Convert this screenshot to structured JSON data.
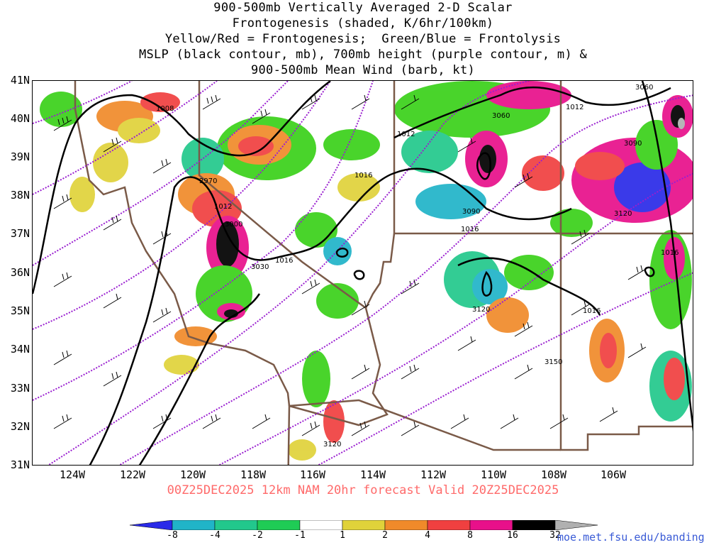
{
  "title": {
    "line1": "900-500mb Vertically Averaged 2-D Scalar",
    "line2": "Frontogenesis (shaded, K/6hr/100km)",
    "line3": "Yellow/Red = Frontogenesis;  Green/Blue = Frontolysis",
    "line4": "MSLP (black contour, mb), 700mb height (purple contour, m) &",
    "line5": "900-500mb Mean Wind (barb, kt)"
  },
  "forecast_line": "00Z25DEC2025 12km NAM 20hr forecast Valid 20Z25DEC2025",
  "credit": "moe.met.fsu.edu/banding",
  "axes": {
    "lat_labels": [
      "41N",
      "40N",
      "39N",
      "38N",
      "37N",
      "36N",
      "35N",
      "34N",
      "33N",
      "32N",
      "31N"
    ],
    "lon_labels": [
      "124W",
      "122W",
      "120W",
      "118W",
      "116W",
      "114W",
      "112W",
      "110W",
      "108W",
      "106W"
    ]
  },
  "colorbar": {
    "labels": [
      "-8",
      "-4",
      "-2",
      "-1",
      "1",
      "2",
      "4",
      "8",
      "16",
      "32"
    ],
    "colors": [
      "#2a2ae8",
      "#20b4c8",
      "#22c88c",
      "#1fcc55",
      "#3ad11a",
      "#ffffff",
      "#e0d23a",
      "#f08a2a",
      "#f04040",
      "#e8108a",
      "#000000",
      "#b0b0b0"
    ]
  },
  "map": {
    "pressure_contour_labels": [
      "1008",
      "1012",
      "1012",
      "1016",
      "1012",
      "1016",
      "1016",
      "1016",
      "1016"
    ],
    "height_contour_labels": [
      "3060",
      "3060",
      "3090",
      "2970",
      "3090",
      "3000",
      "3120",
      "3030",
      "3120",
      "3150",
      "3120"
    ],
    "colors": {
      "pressure": "#000000",
      "height": "#9a1fd0",
      "borders": "#7a5a48"
    }
  }
}
